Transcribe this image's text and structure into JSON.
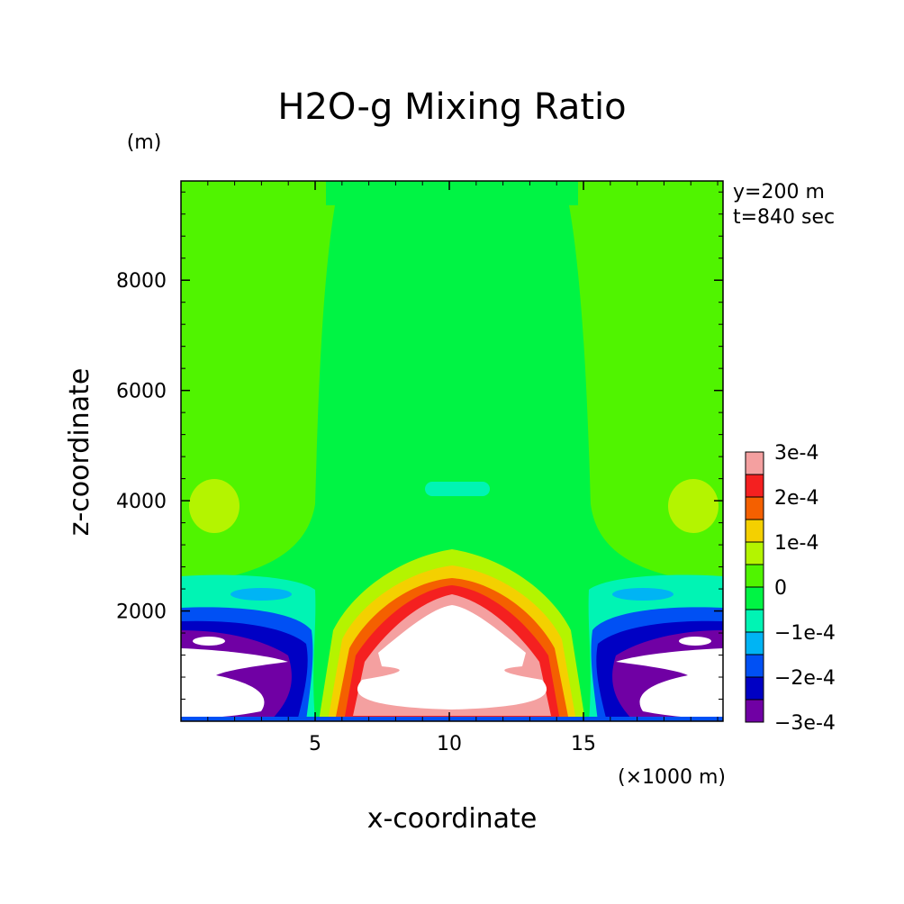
{
  "chart_data": {
    "type": "heatmap",
    "title": "H2O-g Mixing Ratio",
    "xlabel": "x-coordinate",
    "ylabel": "z-coordinate",
    "x_unit": "(×1000 m)",
    "z_unit": "(m)",
    "annotations": [
      "y=200 m",
      "t=840 sec"
    ],
    "xlim": [
      0,
      20.2
    ],
    "ylim": [
      0,
      9800
    ],
    "x_ticks": [
      5,
      10,
      15
    ],
    "x_tick_labels": [
      "5",
      "10",
      "15"
    ],
    "y_ticks": [
      2000,
      4000,
      6000,
      8000
    ],
    "y_tick_labels": [
      "2000",
      "4000",
      "6000",
      "8000"
    ],
    "colorbar": {
      "labels": [
        "3e-4",
        "2e-4",
        "1e-4",
        "0",
        "−1e-4",
        "−2e-4",
        "−3e-4"
      ],
      "levels": [
        {
          "value": 0.0003,
          "color": "#f4a0a0"
        },
        {
          "value": 0.00025,
          "color": "#f42020"
        },
        {
          "value": 0.0002,
          "color": "#f46000"
        },
        {
          "value": 0.00015,
          "color": "#f4d000"
        },
        {
          "value": 0.0001,
          "color": "#b4f400"
        },
        {
          "value": 5e-05,
          "color": "#50f400"
        },
        {
          "value": 0,
          "color": "#00f444"
        },
        {
          "value": -5e-05,
          "color": "#00f4b4"
        },
        {
          "value": -0.0001,
          "color": "#00b4f4"
        },
        {
          "value": -0.00015,
          "color": "#0050f4"
        },
        {
          "value": -0.0002,
          "color": "#0000c4"
        },
        {
          "value": -0.00025,
          "color": "#7000a4"
        }
      ]
    },
    "regions": [
      {
        "name": "upper-background",
        "level": 5e-05
      },
      {
        "name": "central-column",
        "level": 0
      },
      {
        "name": "side-blobs-4000m",
        "level": 0.0001
      },
      {
        "name": "central-negative-blob-4300m",
        "level": -5e-05
      },
      {
        "name": "central-positive-anomaly",
        "level": 0.0003
      },
      {
        "name": "side-negative-anomalies",
        "level": -0.0003
      }
    ]
  }
}
